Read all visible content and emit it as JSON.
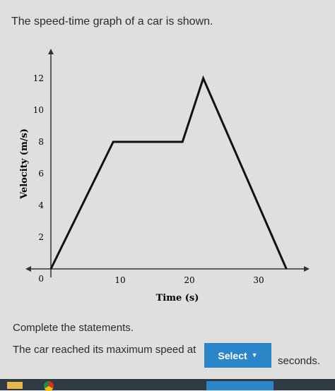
{
  "question": "The speed-time graph of a car is shown.",
  "instructions": "Complete the statements.",
  "statement": {
    "prefix": "The car reached its maximum speed at",
    "select_label": "Select",
    "suffix": "seconds."
  },
  "chart_data": {
    "type": "line",
    "xlabel": "Time (s)",
    "ylabel": "Velocity (m/s)",
    "x_ticks": [
      "10",
      "20",
      "30"
    ],
    "y_ticks": [
      "2",
      "4",
      "6",
      "8",
      "10",
      "12"
    ],
    "origin_label": "0",
    "series": [
      {
        "x": [
          0,
          9,
          19,
          22,
          34
        ],
        "y": [
          0,
          8,
          8,
          12,
          0
        ]
      }
    ]
  },
  "colors": {
    "select_bg": "#2a86c9",
    "line": "#111111"
  }
}
